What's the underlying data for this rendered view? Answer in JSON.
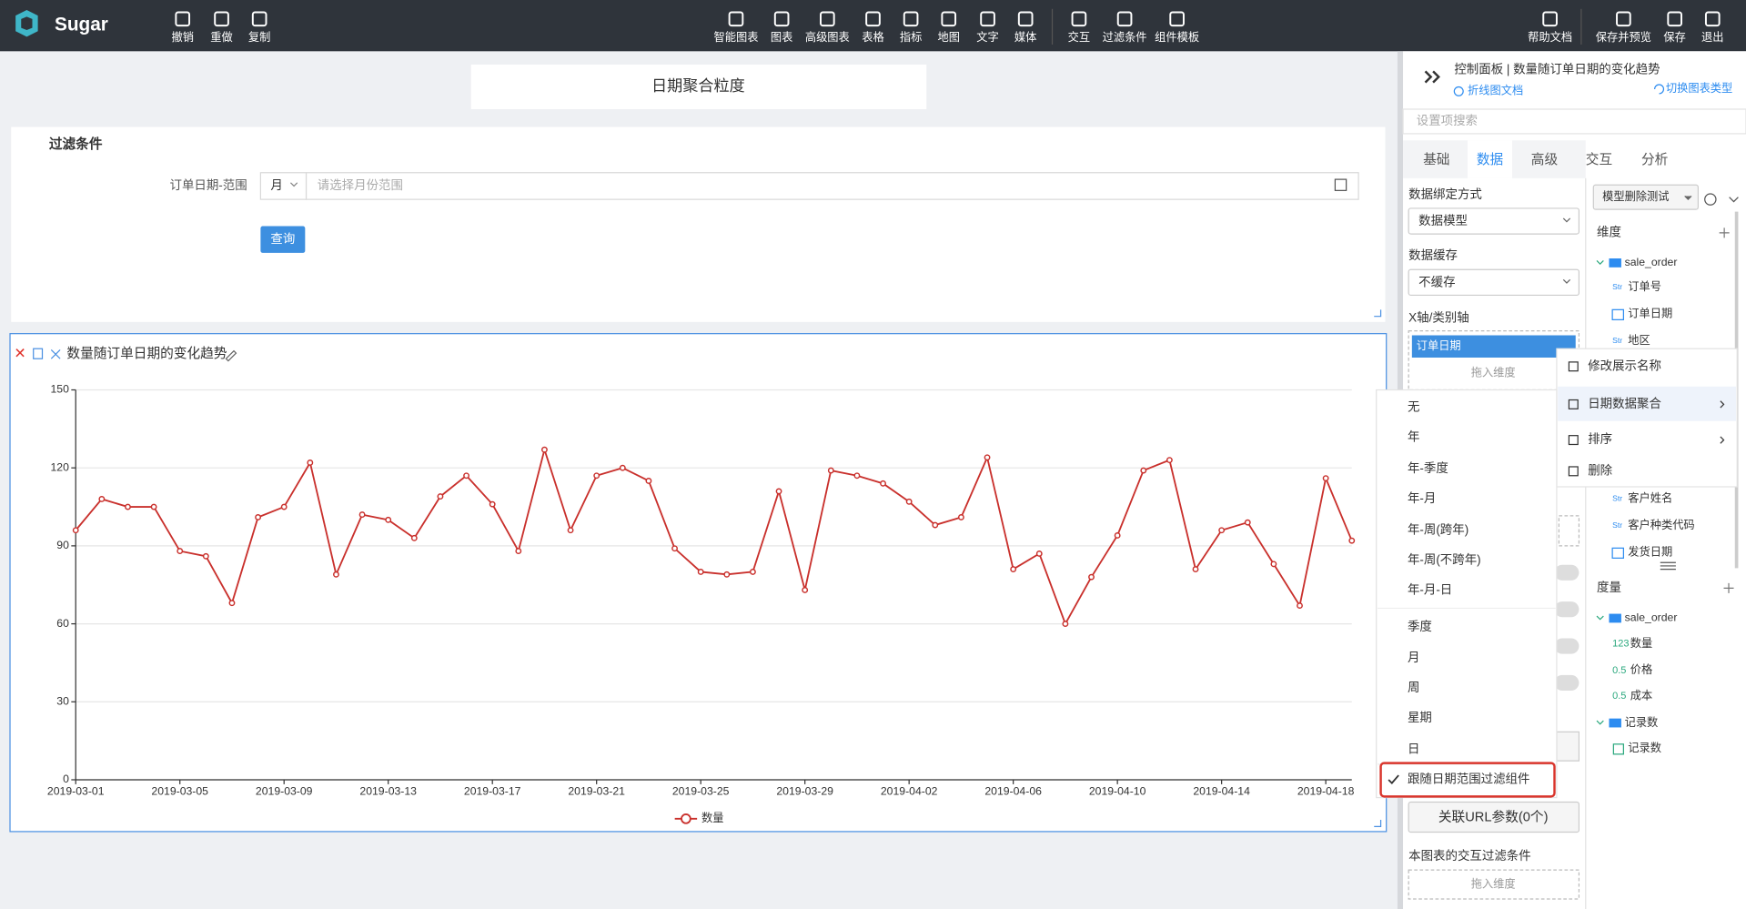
{
  "toolbar": {
    "brand": "Sugar",
    "left": [
      "撤销",
      "重做",
      "复制"
    ],
    "center": [
      "智能图表",
      "图表",
      "高级图表",
      "表格",
      "指标",
      "地图",
      "文字",
      "媒体",
      "交互",
      "过滤条件",
      "组件模板"
    ],
    "right": [
      "帮助文档",
      "保存并预览",
      "保存",
      "退出"
    ]
  },
  "canvas": {
    "title": "日期聚合粒度",
    "filter": {
      "heading": "过滤条件",
      "label": "订单日期-范围",
      "granularity": "月",
      "placeholder": "请选择月份范围",
      "button": "查询"
    }
  },
  "chart_data": {
    "type": "line",
    "title": "数量随订单日期的变化趋势",
    "categories": [
      "2019-03-01",
      null,
      null,
      null,
      "2019-03-05",
      null,
      null,
      null,
      "2019-03-09",
      null,
      null,
      null,
      "2019-03-13",
      null,
      null,
      null,
      "2019-03-17",
      null,
      null,
      null,
      "2019-03-21",
      null,
      null,
      null,
      "2019-03-25",
      null,
      null,
      null,
      "2019-03-29",
      null,
      null,
      null,
      "2019-04-02",
      null,
      null,
      null,
      "2019-04-06",
      null,
      null,
      null,
      "2019-04-10",
      null,
      null,
      null,
      "2019-04-14",
      null,
      null,
      null,
      "2019-04-18",
      null
    ],
    "series": [
      {
        "name": "数量",
        "color": "#c9302c",
        "values": [
          96,
          108,
          105,
          105,
          88,
          86,
          68,
          101,
          105,
          122,
          79,
          102,
          100,
          93,
          109,
          117,
          106,
          88,
          127,
          96,
          117,
          120,
          115,
          89,
          80,
          79,
          80,
          111,
          73,
          119,
          117,
          114,
          107,
          98,
          101,
          124,
          81,
          87,
          60,
          78,
          94,
          119,
          123,
          81,
          96,
          99,
          83,
          67,
          116,
          92
        ]
      }
    ],
    "ylim": [
      0,
      150
    ],
    "yticks": [
      0,
      30,
      60,
      90,
      120,
      150
    ],
    "grid": true
  },
  "panel": {
    "header": "控制面板 | 数量随订单日期的变化趋势",
    "doc_link": "折线图文档",
    "switch_link": "切换图表类型",
    "search_placeholder": "设置项搜索",
    "tabs": [
      "基础",
      "数据",
      "高级",
      "交互",
      "分析"
    ],
    "active_tab": 1,
    "binding_label": "数据绑定方式",
    "binding_value": "数据模型",
    "cache_label": "数据缓存",
    "cache_value": "不缓存",
    "xaxis_label": "X轴/类别轴",
    "xaxis_field": "订单日期",
    "drop_hint": "拖入维度",
    "url_button": "关联URL参数(0个)",
    "interaction_label": "本图表的交互过滤条件",
    "interaction_drop_hint": "拖入维度",
    "model_select": "模型删除测试",
    "dimensions_label": "维度",
    "dimension_folder": "sale_order",
    "dimensions": [
      {
        "icon": "Str",
        "name": "订单号"
      },
      {
        "name": "订单日期"
      },
      {
        "icon": "Str",
        "name": "地区"
      },
      {
        "icon": "Str",
        "name": "客户姓名"
      },
      {
        "icon": "Str",
        "name": "客户种类代码"
      },
      {
        "name": "发货日期"
      }
    ],
    "measures_label": "度量",
    "measure_folder": "sale_order",
    "measures": [
      {
        "icon": "123",
        "name": "数量"
      },
      {
        "icon": "0.5",
        "name": "价格"
      },
      {
        "icon": "0.5",
        "name": "成本"
      }
    ],
    "count_folder": "记录数",
    "count_item": "记录数"
  },
  "context_menu": [
    "修改展示名称",
    "日期数据聚合",
    "排序",
    "删除"
  ],
  "aggregation_menu": {
    "groups": [
      [
        "无",
        "年",
        "年-季度",
        "年-月",
        "年-周(跨年)",
        "年-周(不跨年)",
        "年-月-日"
      ],
      [
        "季度",
        "月",
        "周",
        "星期",
        "日"
      ]
    ],
    "checked_option": "跟随日期范围过滤组件"
  }
}
